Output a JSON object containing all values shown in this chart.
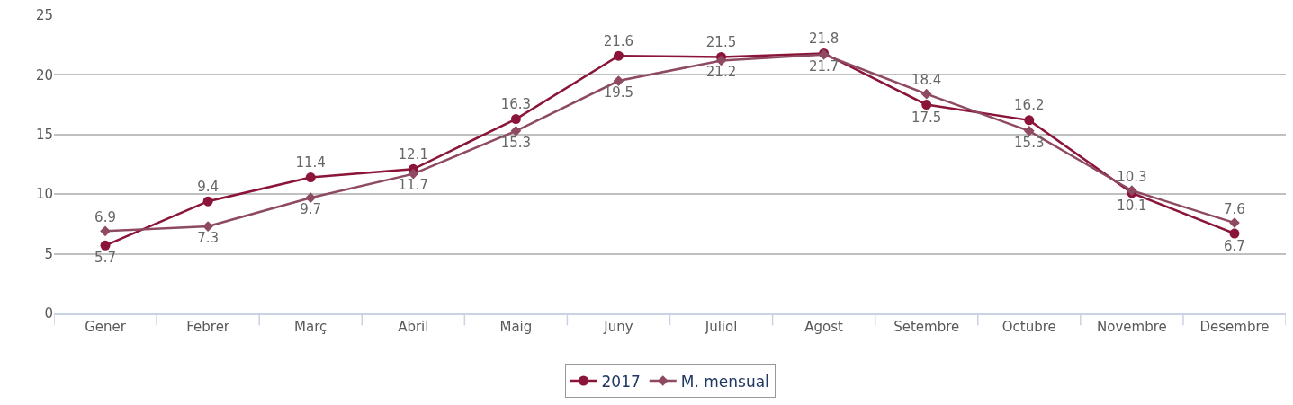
{
  "chart_data": {
    "type": "line",
    "categories": [
      "Gener",
      "Febrer",
      "Març",
      "Abril",
      "Maig",
      "Juny",
      "Juliol",
      "Agost",
      "Setembre",
      "Octubre",
      "Novembre",
      "Desembre"
    ],
    "series": [
      {
        "name": "2017",
        "color": "#8b1538",
        "marker": "circle",
        "values": [
          5.7,
          9.4,
          11.4,
          12.1,
          16.3,
          21.6,
          21.5,
          21.8,
          17.5,
          16.2,
          10.1,
          6.7
        ]
      },
      {
        "name": "M. mensual",
        "color": "#8e4a62",
        "marker": "diamond",
        "values": [
          6.9,
          7.3,
          9.7,
          11.7,
          15.3,
          19.5,
          21.2,
          21.7,
          18.4,
          15.3,
          10.3,
          7.6
        ]
      }
    ],
    "data_labels": true,
    "ylim": [
      0,
      25
    ],
    "yticks": [
      0,
      5,
      10,
      15,
      20,
      25
    ],
    "grid": "y",
    "legend": "bottom",
    "line_style": "solid"
  }
}
